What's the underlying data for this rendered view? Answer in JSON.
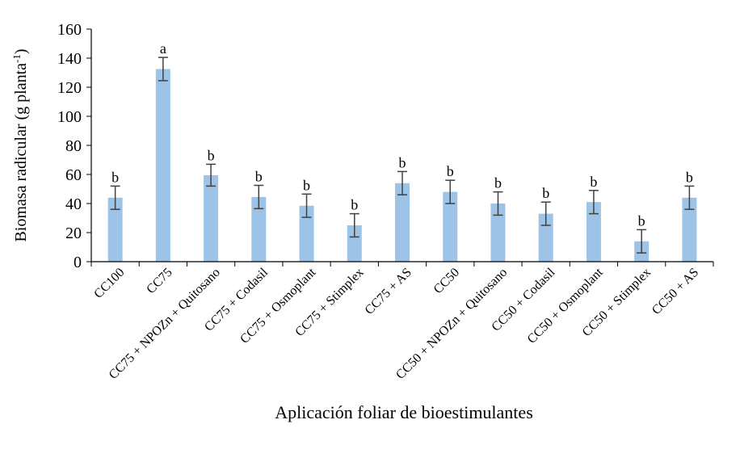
{
  "chart_data": {
    "type": "bar",
    "xlabel": "Aplicación foliar de bioestimulantes",
    "ylabel_main": "Biomasa radicular (g planta",
    "ylabel_sup": "-1",
    "ylabel_close": ")",
    "ylim": [
      0,
      160
    ],
    "yticks": [
      0,
      20,
      40,
      60,
      80,
      100,
      120,
      140,
      160
    ],
    "grid": false,
    "bar_color": "#9DC3E6",
    "error_color": "#404040",
    "categories": [
      "CC100",
      "CC75",
      "CC75 + NPOZn + Quitosano",
      "CC75 + Codasil",
      "CC75 + Osmoplant",
      "CC75 + Stimplex",
      "CC75 + AS",
      "CC50",
      "CC50 + NPOZn + Quitosano",
      "CC50 + Codasil",
      "CC50 + Osmoplant",
      "CC50 + Stimplex",
      "CC50 + AS"
    ],
    "values": [
      44,
      132.5,
      59.5,
      44.5,
      38.5,
      25,
      54,
      48,
      40,
      33,
      41,
      14,
      44
    ],
    "errors": [
      8,
      8,
      7.5,
      8,
      8,
      8,
      8,
      8,
      8,
      8,
      8,
      8,
      8
    ],
    "letters": [
      "b",
      "a",
      "b",
      "b",
      "b",
      "b",
      "b",
      "b",
      "b",
      "b",
      "b",
      "b",
      "b"
    ]
  }
}
